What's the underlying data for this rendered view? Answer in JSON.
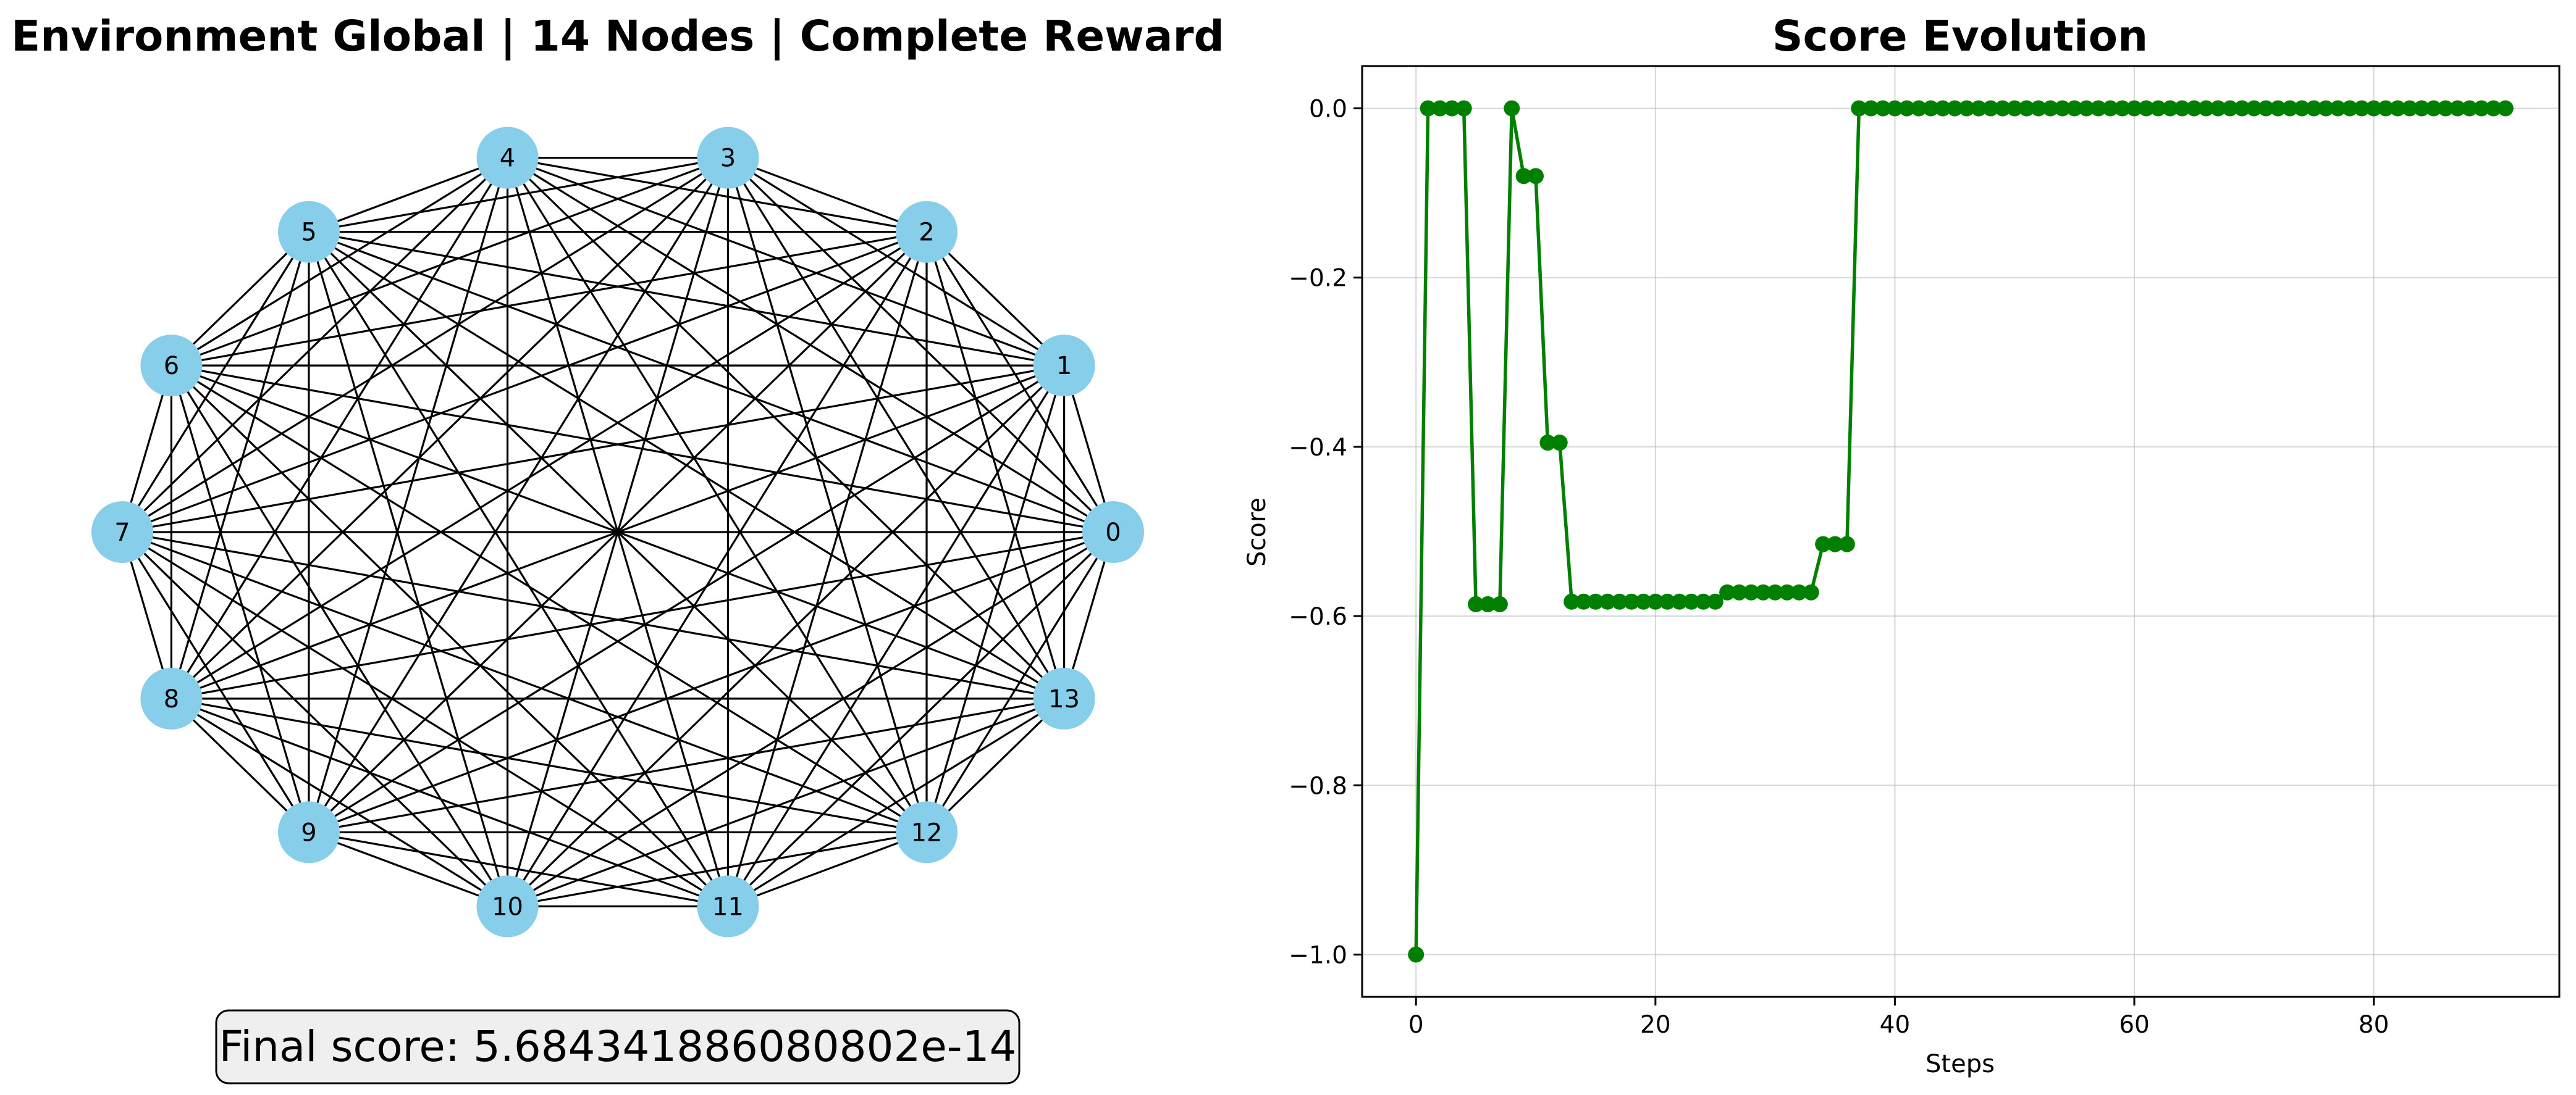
{
  "graph_panel": {
    "title": "Environment Global | 14 Nodes | Complete Reward",
    "nodes": [
      "0",
      "1",
      "2",
      "3",
      "4",
      "5",
      "6",
      "7",
      "8",
      "9",
      "10",
      "11",
      "12",
      "13"
    ],
    "node_color": "#87CEEB",
    "edge_color": "#000000",
    "complete": true,
    "final_score_label": "Final score: 5.684341886080802e-14"
  },
  "chart_data": {
    "type": "line",
    "title": "Score Evolution",
    "xlabel": "Steps",
    "ylabel": "Score",
    "xlim": [
      -4.5,
      95.5
    ],
    "ylim": [
      -1.05,
      0.05
    ],
    "xticks": [
      0,
      20,
      40,
      60,
      80
    ],
    "xtick_labels": [
      "0",
      "20",
      "40",
      "60",
      "80"
    ],
    "yticks": [
      0.0,
      -0.2,
      -0.4,
      -0.6,
      -0.8,
      -1.0
    ],
    "ytick_labels": [
      "0.0",
      "−0.2",
      "−0.4",
      "−0.6",
      "−0.8",
      "−1.0"
    ],
    "grid": true,
    "color": "#008000",
    "marker": "circle",
    "series": [
      {
        "x": [
          0,
          1,
          2,
          3,
          4,
          5,
          6,
          7,
          8,
          9,
          10,
          11,
          12,
          13,
          14,
          15,
          16,
          17,
          18,
          19,
          20,
          21,
          22,
          23,
          24,
          25,
          26,
          27,
          28,
          29,
          30,
          31,
          32,
          33,
          34,
          35,
          36,
          37,
          38,
          39,
          40,
          41,
          42,
          43,
          44,
          45,
          46,
          47,
          48,
          49,
          50,
          51,
          52,
          53,
          54,
          55,
          56,
          57,
          58,
          59,
          60,
          61,
          62,
          63,
          64,
          65,
          66,
          67,
          68,
          69,
          70,
          71,
          72,
          73,
          74,
          75,
          76,
          77,
          78,
          79,
          80,
          81,
          82,
          83,
          84,
          85,
          86,
          87,
          88,
          89,
          90,
          91
        ],
        "values": [
          -1.0,
          0.0,
          0.0,
          0.0,
          0.0,
          -0.586,
          -0.586,
          -0.586,
          0.0,
          -0.08,
          -0.08,
          -0.395,
          -0.395,
          -0.583,
          -0.583,
          -0.583,
          -0.583,
          -0.583,
          -0.583,
          -0.583,
          -0.583,
          -0.583,
          -0.583,
          -0.583,
          -0.583,
          -0.583,
          -0.572,
          -0.572,
          -0.572,
          -0.572,
          -0.572,
          -0.572,
          -0.572,
          -0.572,
          -0.515,
          -0.515,
          -0.515,
          0.0,
          0.0,
          0.0,
          0.0,
          0.0,
          0.0,
          0.0,
          0.0,
          0.0,
          0.0,
          0.0,
          0.0,
          0.0,
          0.0,
          0.0,
          0.0,
          0.0,
          0.0,
          0.0,
          0.0,
          0.0,
          0.0,
          0.0,
          0.0,
          0.0,
          0.0,
          0.0,
          0.0,
          0.0,
          0.0,
          0.0,
          0.0,
          0.0,
          0.0,
          0.0,
          0.0,
          0.0,
          0.0,
          0.0,
          0.0,
          0.0,
          0.0,
          0.0,
          0.0,
          0.0,
          0.0,
          0.0,
          0.0,
          0.0,
          0.0,
          0.0,
          0.0,
          0.0,
          0.0,
          0.0
        ]
      }
    ]
  }
}
